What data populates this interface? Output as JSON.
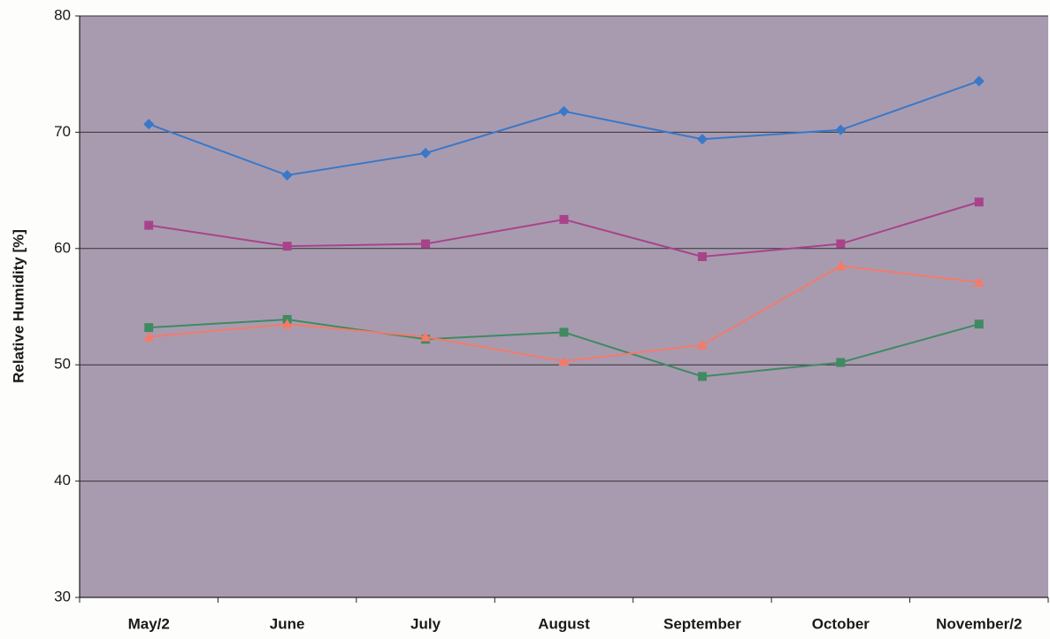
{
  "chart_data": {
    "type": "line",
    "y_label": "Relative Humidity [%]",
    "categories": [
      "May/2",
      "June",
      "July",
      "August",
      "September",
      "October",
      "November/2"
    ],
    "series": [
      {
        "color": "#3a78c8",
        "marker": "diamond",
        "values": [
          70.7,
          66.3,
          68.2,
          71.8,
          69.4,
          70.2,
          74.4
        ]
      },
      {
        "color": "#a8438a",
        "marker": "square",
        "values": [
          62.0,
          60.2,
          60.4,
          62.5,
          59.3,
          60.4,
          64.0
        ]
      },
      {
        "color": "#3f8a62",
        "marker": "square",
        "values": [
          53.2,
          53.9,
          52.2,
          52.8,
          49.0,
          50.2,
          53.5
        ]
      },
      {
        "color": "#f47a6a",
        "marker": "triangle",
        "values": [
          52.4,
          53.5,
          52.4,
          50.3,
          51.7,
          58.5,
          57.1
        ]
      }
    ],
    "ylim": [
      30,
      80
    ],
    "yticks": [
      30,
      40,
      50,
      60,
      70,
      80
    ],
    "grid": true
  }
}
